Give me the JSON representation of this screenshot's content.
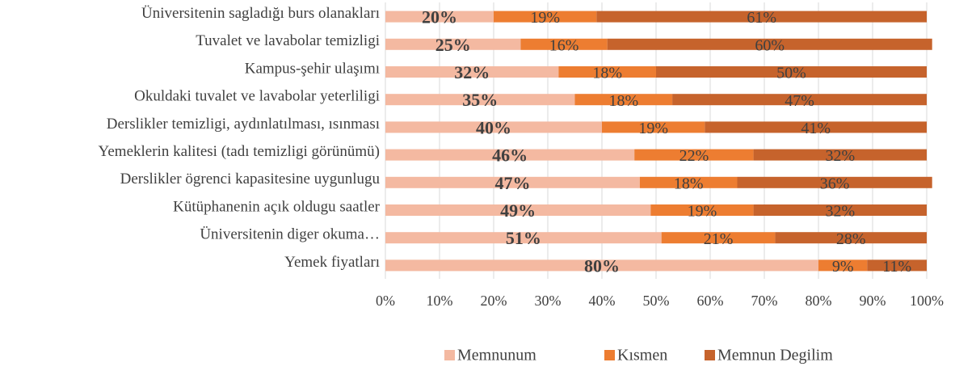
{
  "chart_data": {
    "type": "stacked_bar_horizontal",
    "categories": [
      "Üniversitenin sagladığı burs olanakları",
      "Tuvalet ve lavabolar temizligi",
      "Kampus-şehir ulaşımı",
      "Okuldaki tuvalet ve lavabolar yeterliligi",
      "Derslikler temizligi, aydınlatılması, ısınması",
      "Yemeklerin kalitesi (tadı temizligi görünümü)",
      "Derslikler ögrenci kapasitesine uygunlugu",
      "Kütüphanenin açık oldugu saatler",
      "Üniversitenin diger okuma…",
      "Yemek fiyatları"
    ],
    "series": [
      {
        "name": "Memnunum",
        "color": "#f4b9a1",
        "values": [
          20,
          25,
          32,
          35,
          40,
          46,
          47,
          49,
          51,
          80
        ],
        "value_labels": [
          "20%",
          "25%",
          "32%",
          "35%",
          "40%",
          "46%",
          "47%",
          "49%",
          "51%",
          "80%"
        ]
      },
      {
        "name": "Kısmen",
        "color": "#ed7d31",
        "values": [
          19,
          16,
          18,
          18,
          19,
          22,
          18,
          19,
          21,
          9
        ],
        "value_labels": [
          "19%",
          "16%",
          "18%",
          "18%",
          "19%",
          "22%",
          "18%",
          "19%",
          "21%",
          "9%"
        ]
      },
      {
        "name": "Memnun Degilim",
        "color": "#c6632c",
        "values": [
          61,
          60,
          50,
          47,
          41,
          32,
          36,
          32,
          28,
          11
        ],
        "value_labels": [
          "61%",
          "60%",
          "50%",
          "47%",
          "41%",
          "32%",
          "36%",
          "32%",
          "28%",
          "11%"
        ]
      }
    ],
    "xlim": [
      0,
      100
    ],
    "xticks": [
      {
        "value": 0,
        "label": "0%"
      },
      {
        "value": 10,
        "label": "10%"
      },
      {
        "value": 20,
        "label": "20%"
      },
      {
        "value": 30,
        "label": "30%"
      },
      {
        "value": 40,
        "label": "40%"
      },
      {
        "value": 50,
        "label": "50%"
      },
      {
        "value": 60,
        "label": "60%"
      },
      {
        "value": 70,
        "label": "70%"
      },
      {
        "value": 80,
        "label": "80%"
      },
      {
        "value": 90,
        "label": "90%"
      },
      {
        "value": 100,
        "label": "100%"
      }
    ],
    "grid": true,
    "legend": "bottom"
  }
}
